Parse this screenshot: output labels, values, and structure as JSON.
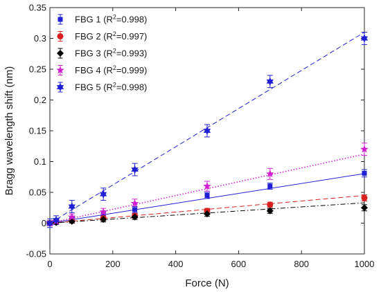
{
  "chart_data": {
    "type": "scatter",
    "xlabel": "Force (N)",
    "ylabel": "Bragg wavelength shift (nm)",
    "xlim": [
      0,
      1000
    ],
    "ylim": [
      -0.05,
      0.35
    ],
    "x_ticks": [
      "0",
      "200",
      "400",
      "600",
      "800",
      "1000"
    ],
    "y_ticks": [
      "-0.05",
      "0",
      "0.05",
      "0.1",
      "0.15",
      "0.2",
      "0.25",
      "0.3",
      "0.35"
    ],
    "legend_placement": "top-left",
    "grid": false,
    "x": [
      0,
      20,
      70,
      170,
      270,
      500,
      700,
      1000
    ],
    "series": [
      {
        "name": "FBG 1",
        "r2_label": "(R2=0.998)",
        "r2_prefix": "(R",
        "r2_sup": "2",
        "r2_suffix": "=0.998)",
        "color": "#1f1fd6",
        "marker": "square",
        "line_style": "solid",
        "values": [
          0.0,
          0.002,
          0.006,
          0.015,
          0.022,
          0.045,
          0.06,
          0.081
        ],
        "errors": [
          0.004,
          0.004,
          0.004,
          0.005,
          0.005,
          0.005,
          0.005,
          0.006
        ],
        "fit": [
          0.0,
          0.0805
        ]
      },
      {
        "name": "FBG 2",
        "r2_label": "(R2=0.997)",
        "r2_prefix": "(R",
        "r2_sup": "2",
        "r2_suffix": "=0.997)",
        "color": "#d62020",
        "marker": "circle",
        "line_style": "dashed",
        "values": [
          0.0,
          0.002,
          0.004,
          0.008,
          0.012,
          0.02,
          0.03,
          0.041
        ],
        "errors": [
          0.003,
          0.003,
          0.003,
          0.004,
          0.004,
          0.004,
          0.004,
          0.005
        ],
        "fit": [
          0.0,
          0.045
        ]
      },
      {
        "name": "FBG 3",
        "r2_label": "(R2=0.993)",
        "r2_prefix": "(R",
        "r2_sup": "2",
        "r2_suffix": "=0.993)",
        "color": "#000000",
        "marker": "diamond",
        "line_style": "dashdot",
        "values": [
          0.0,
          0.001,
          0.003,
          0.006,
          0.01,
          0.015,
          0.02,
          0.025
        ],
        "errors": [
          0.003,
          0.003,
          0.003,
          0.004,
          0.004,
          0.004,
          0.004,
          0.005
        ],
        "fit": [
          0.0,
          0.033
        ]
      },
      {
        "name": "FBG 4",
        "r2_label": "(R2=0.999)",
        "r2_prefix": "(R",
        "r2_sup": "2",
        "r2_suffix": "=0.999)",
        "color": "#d020d0",
        "marker": "star",
        "line_style": "dotted",
        "values": [
          0.0,
          0.003,
          0.01,
          0.018,
          0.032,
          0.06,
          0.08,
          0.12
        ],
        "errors": [
          0.004,
          0.004,
          0.005,
          0.006,
          0.007,
          0.008,
          0.009,
          0.01
        ],
        "fit": [
          0.0,
          0.112
        ]
      },
      {
        "name": "FBG 5",
        "r2_label": "(R2=0.998)",
        "r2_prefix": "(R",
        "r2_sup": "2",
        "r2_suffix": "=0.998)",
        "color": "#1f1fd6",
        "marker": "hexagram",
        "line_style": "dashed",
        "values": [
          0.0,
          0.005,
          0.027,
          0.047,
          0.087,
          0.15,
          0.23,
          0.3
        ],
        "errors": [
          0.007,
          0.007,
          0.01,
          0.01,
          0.01,
          0.01,
          0.01,
          0.01
        ],
        "fit": [
          0.0,
          0.31
        ]
      }
    ]
  }
}
